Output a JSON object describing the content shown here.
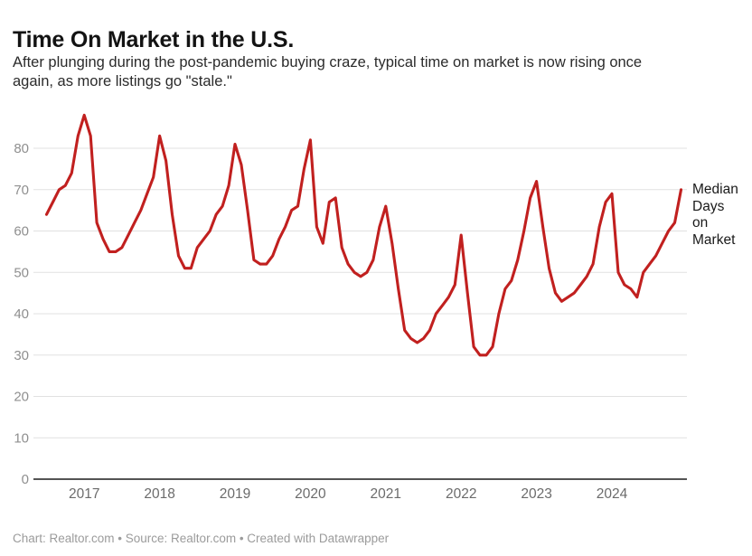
{
  "header": {
    "title": "Time On Market in the U.S.",
    "subtitle_line1": "After plunging during the post-pandemic buying craze, typical time on market is now rising once",
    "subtitle_line2": "again, as more listings go \"stale.\""
  },
  "annotation": {
    "lines": [
      "Median",
      "Days",
      "on",
      "Market"
    ]
  },
  "footer": {
    "text": "Chart: Realtor.com • Source: Realtor.com • Created with Datawrapper"
  },
  "chart_data": {
    "type": "line",
    "title": "Time On Market in the U.S.",
    "series_name": "Median Days on Market",
    "unit": "days",
    "grid": "horizontal",
    "legend_position": "right",
    "line_color": "#c1201f",
    "ylim": [
      0,
      90
    ],
    "yticks": [
      0,
      10,
      20,
      30,
      40,
      50,
      60,
      70,
      80
    ],
    "xticks": [
      "2017",
      "2018",
      "2019",
      "2020",
      "2021",
      "2022",
      "2023",
      "2024"
    ],
    "x": [
      "2016-07",
      "2016-08",
      "2016-09",
      "2016-10",
      "2016-11",
      "2016-12",
      "2017-01",
      "2017-02",
      "2017-03",
      "2017-04",
      "2017-05",
      "2017-06",
      "2017-07",
      "2017-08",
      "2017-09",
      "2017-10",
      "2017-11",
      "2017-12",
      "2018-01",
      "2018-02",
      "2018-03",
      "2018-04",
      "2018-05",
      "2018-06",
      "2018-07",
      "2018-08",
      "2018-09",
      "2018-10",
      "2018-11",
      "2018-12",
      "2019-01",
      "2019-02",
      "2019-03",
      "2019-04",
      "2019-05",
      "2019-06",
      "2019-07",
      "2019-08",
      "2019-09",
      "2019-10",
      "2019-11",
      "2019-12",
      "2020-01",
      "2020-02",
      "2020-03",
      "2020-04",
      "2020-05",
      "2020-06",
      "2020-07",
      "2020-08",
      "2020-09",
      "2020-10",
      "2020-11",
      "2020-12",
      "2021-01",
      "2021-02",
      "2021-03",
      "2021-04",
      "2021-05",
      "2021-06",
      "2021-07",
      "2021-08",
      "2021-09",
      "2021-10",
      "2021-11",
      "2021-12",
      "2022-01",
      "2022-02",
      "2022-03",
      "2022-04",
      "2022-05",
      "2022-06",
      "2022-07",
      "2022-08",
      "2022-09",
      "2022-10",
      "2022-11",
      "2022-12",
      "2023-01",
      "2023-02",
      "2023-03",
      "2023-04",
      "2023-05",
      "2023-06",
      "2023-07",
      "2023-08",
      "2023-09",
      "2023-10",
      "2023-11",
      "2023-12",
      "2024-01",
      "2024-02",
      "2024-03",
      "2024-04",
      "2024-05",
      "2024-06",
      "2024-07",
      "2024-08",
      "2024-09",
      "2024-10",
      "2024-11",
      "2024-12"
    ],
    "values": [
      64,
      67,
      70,
      71,
      74,
      83,
      88,
      83,
      62,
      58,
      55,
      55,
      56,
      59,
      62,
      65,
      69,
      73,
      83,
      77,
      64,
      54,
      51,
      51,
      56,
      58,
      60,
      64,
      66,
      71,
      81,
      76,
      65,
      53,
      52,
      52,
      54,
      58,
      61,
      65,
      66,
      75,
      82,
      61,
      57,
      67,
      68,
      56,
      52,
      50,
      49,
      50,
      53,
      61,
      66,
      57,
      46,
      36,
      34,
      33,
      34,
      36,
      40,
      42,
      44,
      47,
      59,
      45,
      32,
      30,
      30,
      32,
      40,
      46,
      48,
      53,
      60,
      68,
      72,
      61,
      51,
      45,
      43,
      44,
      45,
      47,
      49,
      52,
      61,
      67,
      69,
      50,
      47,
      46,
      44,
      50,
      52,
      54,
      57,
      60,
      62,
      70
    ]
  }
}
